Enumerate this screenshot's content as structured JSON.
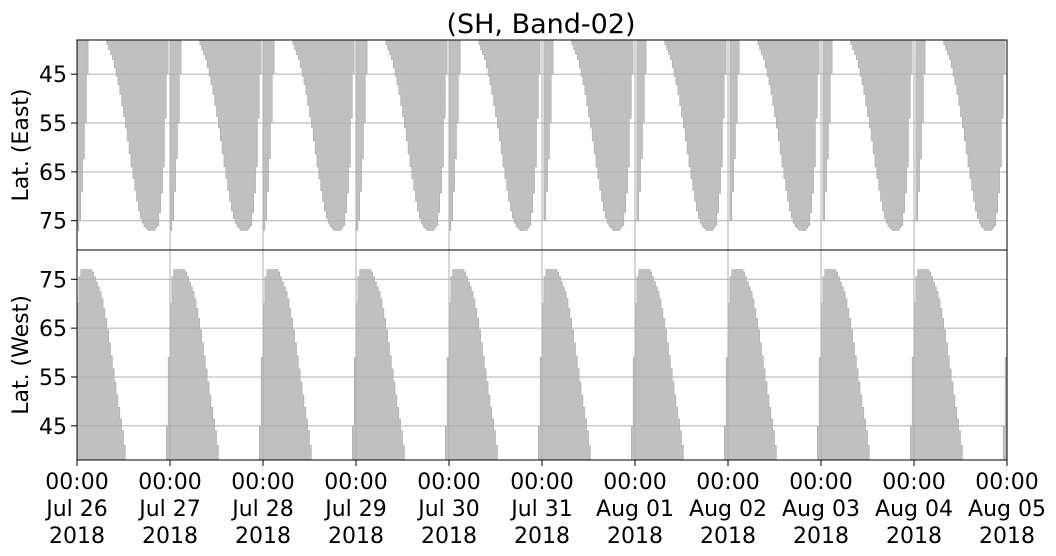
{
  "chart_data": {
    "type": "heatmap",
    "title": "(SH, Band-02)",
    "x_ticks": [
      {
        "time": "00:00",
        "date": "Jul 26",
        "year": "2018"
      },
      {
        "time": "00:00",
        "date": "Jul 27",
        "year": "2018"
      },
      {
        "time": "00:00",
        "date": "Jul 28",
        "year": "2018"
      },
      {
        "time": "00:00",
        "date": "Jul 29",
        "year": "2018"
      },
      {
        "time": "00:00",
        "date": "Jul 30",
        "year": "2018"
      },
      {
        "time": "00:00",
        "date": "Jul 31",
        "year": "2018"
      },
      {
        "time": "00:00",
        "date": "Aug 01",
        "year": "2018"
      },
      {
        "time": "00:00",
        "date": "Aug 02",
        "year": "2018"
      },
      {
        "time": "00:00",
        "date": "Aug 03",
        "year": "2018"
      },
      {
        "time": "00:00",
        "date": "Aug 04",
        "year": "2018"
      },
      {
        "time": "00:00",
        "date": "Aug 05",
        "year": "2018"
      }
    ],
    "xlim": [
      "2018-07-26 00:00",
      "2018-08-05 00:00"
    ],
    "grid": true,
    "fill_color": "#bdbdbd",
    "panels": [
      {
        "ylabel": "Lat. (East)",
        "ylim": [
          38,
          81
        ],
        "y_inverted": true,
        "y_ticks": [
          "45",
          "55",
          "65",
          "75"
        ],
        "y_tick_values": [
          45,
          55,
          65,
          75
        ],
        "cycle_start_day": 0.0,
        "coverage": [
          [
            0.0,
            77
          ],
          [
            0.02,
            75
          ],
          [
            0.05,
            66
          ],
          [
            0.08,
            55
          ],
          [
            0.1,
            45
          ],
          [
            0.12,
            38
          ],
          [
            0.3,
            38
          ],
          [
            0.38,
            42
          ],
          [
            0.45,
            48
          ],
          [
            0.52,
            56
          ],
          [
            0.58,
            64
          ],
          [
            0.63,
            70
          ],
          [
            0.67,
            74
          ],
          [
            0.71,
            76
          ],
          [
            0.76,
            77
          ],
          [
            0.82,
            77
          ],
          [
            0.86,
            76
          ],
          [
            0.89,
            72
          ],
          [
            0.92,
            64
          ],
          [
            0.94,
            54
          ],
          [
            0.96,
            45
          ],
          [
            0.98,
            38
          ],
          [
            1.0,
            38
          ]
        ]
      },
      {
        "ylabel": "Lat. (West)",
        "ylim": [
          38,
          81
        ],
        "y_inverted": false,
        "y_ticks": [
          "75",
          "65",
          "55",
          "45"
        ],
        "y_tick_values": [
          75,
          65,
          55,
          45
        ],
        "cycle_start_day": -0.05,
        "coverage": [
          [
            0.0,
            38
          ],
          [
            0.02,
            52
          ],
          [
            0.04,
            66
          ],
          [
            0.06,
            74
          ],
          [
            0.08,
            77
          ],
          [
            0.2,
            77
          ],
          [
            0.24,
            75
          ],
          [
            0.3,
            72
          ],
          [
            0.36,
            66
          ],
          [
            0.42,
            58
          ],
          [
            0.48,
            50
          ],
          [
            0.53,
            44
          ],
          [
            0.57,
            38
          ],
          [
            1.0,
            38
          ]
        ]
      }
    ],
    "annotations": [
      {
        "panel": 1,
        "day": 5.2,
        "lat_from": 68,
        "lat_to": 71
      },
      {
        "panel": 1,
        "day": 7.22,
        "lat_from": 58,
        "lat_to": 59
      },
      {
        "panel": 1,
        "day": 7.28,
        "lat_from": 58,
        "lat_to": 59
      }
    ]
  }
}
